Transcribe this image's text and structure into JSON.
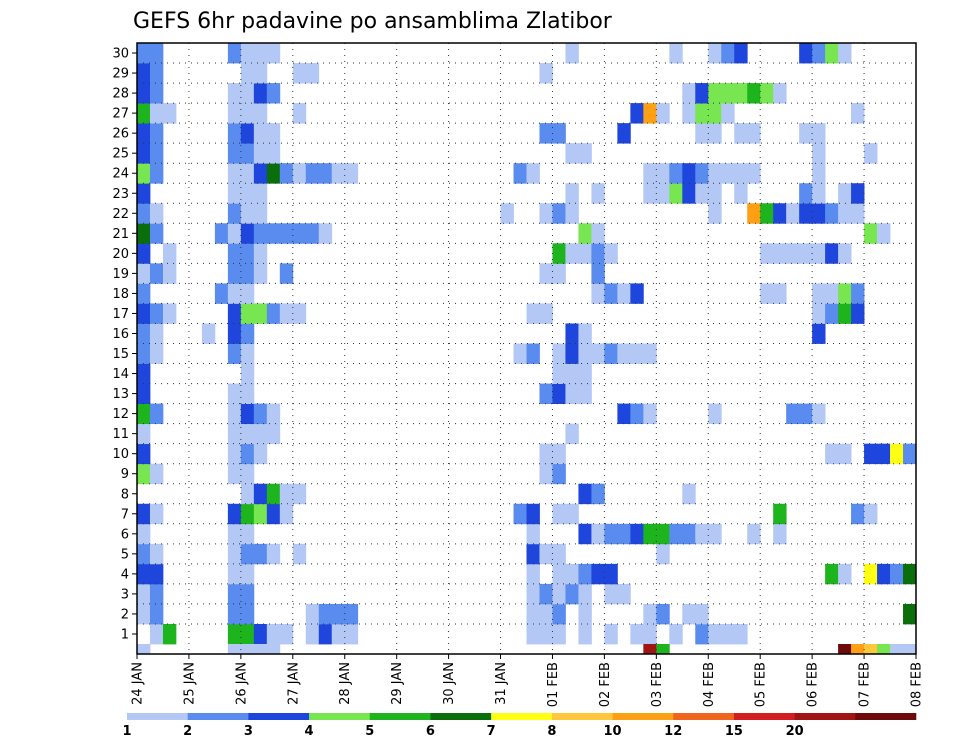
{
  "chart_data": {
    "type": "heatmap",
    "title": "GEFS 6hr padavine po ansamblima Zlatibor",
    "xlabel": "",
    "ylabel": "",
    "x_tick_labels": [
      "24 JAN",
      "25 JAN",
      "26 JAN",
      "27 JAN",
      "28 JAN",
      "29 JAN",
      "30 JAN",
      "31 JAN",
      "01 FEB",
      "02 FEB",
      "03 FEB",
      "04 FEB",
      "05 FEB",
      "06 FEB",
      "07 FEB",
      "08 FEB"
    ],
    "x_range_days": [
      0,
      15
    ],
    "y_tick_labels": [
      "1",
      "2",
      "3",
      "4",
      "5",
      "6",
      "7",
      "8",
      "9",
      "10",
      "11",
      "12",
      "13",
      "14",
      "15",
      "16",
      "17",
      "18",
      "19",
      "20",
      "21",
      "22",
      "23",
      "24",
      "25",
      "26",
      "27",
      "28",
      "29",
      "30"
    ],
    "y_range": [
      0,
      30
    ],
    "grid": true,
    "colorbar": {
      "labels": [
        "1",
        "2",
        "3",
        "4",
        "5",
        "6",
        "7",
        "8",
        "10",
        "12",
        "15",
        "20"
      ],
      "colors": [
        "#b4c8f5",
        "#5a8cf0",
        "#1e46dc",
        "#78e650",
        "#1eb41e",
        "#0a6e0a",
        "#ffff14",
        "#ffc83c",
        "#ffa014",
        "#f0641e",
        "#d21e1e",
        "#a01414",
        "#6e0a0a"
      ]
    },
    "cells_by_member": {
      "1": "0.25:0,0.5:4,1.75:4,2:4,2.25:2,2.5:0,2.75:0,3.25:0,3.5:2,3.75:0,4:0,7.5:0,7.75:0,8:0,8.5:0,9:0,9.5:0,9.75:0,10.25:0,10.75:1,11:0,11.25:0,11.5:0",
      "2": "0,0.25:1,1.75:1,2:1,3.25:0,3.5:1,3.75:1,4:1,7.5:0,7.75:0,8:1,8.5:0,9.75:0,10:1,10.5:0,10.75:0,14.75:5",
      "3": "0,0.25:1,1.75:1,2:1,7.5:0,7.75:1,8:0,8.25:1,8.5:0,9:0,9.25:0",
      "4": "0:2,0.25:2,1.75:0,2:0,7.5:0,8:0,8.25:0,8.5:1,8.75:2,9:2,13.25:4,13.5:0,14:6,14.25:2,14.5:1,14.75:5",
      "5": "0:1,0.25:0,1.75:0,2:1,2.25:1,2.5:0,3:0,7.5:2,7.75:0,8:0,10:0",
      "6": "0,1.75:0,2:0,7.5:0,8.5:2,8.75:0,9:1,9.25:1,9.5:2,9.75:4,10:4,10.25:1,10.5:1,10.75:0,11:0,11.75:0,12.25:0",
      "7": "0:2,0.25:0,1.75:2,2:4,2.25:3,2.5:2,2.75:0,7.25:1,7.5:2,8:0,8.25:0,12.25:4,13.75:1,14:0",
      "8": "2,2.25:2,2.5:4,2.75:0,3:0,8.5:2,8.75:1,10.5:0",
      "9": "0:3,0.25:0,1.75:0,2:0,7.75:0,8:1",
      "10": "0:2,1.75:0,2:1,2.25:0,7.75:0,8:0,13.25:0,13.5:0,14:2,14.25:2,14.5:6,14.75:1",
      "11": "0,1.75:0,2:0,2.25:0,2.5:0,8.25:0",
      "12": "0:4,0.25:1,1.75:0,2:2,2.25:1,2.5:0,9.25:2,9.5:1,9.75:0,11:0,12.5:1,12.75:1,13:0",
      "13": "0:2,1.75:0,2:0,7.75:1,8:2,8.25:0,8.5:0",
      "14": "0:2,2:0,8:0,8.25:0,8.5:0",
      "15": "0:1,0.25:0,1.75:1,2:0,7.25:0,7.5:1,8:0,8.25:2,8.5:0,8.75:0,9:1,9.25:0,9.5:0,9.75:0",
      "16": "0:1,0.25:0,1.25:0,1.75:2,2:1,8.25:2,8.5:0,13:2",
      "17": "0:2,0.25:1,0.5:0,1.75:2,2:3,2.25:3,2.5:1,2.75:0,3:0,7.5:0,7.75:0,13:0,13.25:1,13.5:4,13.75:2",
      "18": "0:1,1.5:1,1.75:0,2:0,8.75:0,9:1,9.25:0,9.5:2,12:0,12.25:0,13:0,13.25:0,13.5:3,13.75:1",
      "19": "0:0,0.25:1,0.5:0,1.75:1,2:1,2.25:0,2.75:1,7.75:0,8:0,8.75:1",
      "20": "0:2,0.5:0,1.75:1,2:1,2.25:0,8:4,8.25:0,8.5:0,8.75:1,9:0,12:0,12.25:0,12.5:0,12.75:0,13:0,13.25:2,13.5:0",
      "21": "0:5,0.25:1,1.5:1,1.75:0,2:2,2.25:1,2.5:1,2.75:1,3:1,3.25:1,3.5:0,8.5:3,8.75:0,14:3,14.25:0",
      "22": "0:1,0.25:0,1.75:1,2:0,2.25:0,7:0,7.75:0,8:1,8.25:0,11:0,11.75:8,12:4,12.25:2,12.5:0,12.75:2,13:2,13.25:1,13.5:0,13.75:0",
      "23": "0:2,1.75:0,2:0,2.25:0,8.25:0,8.75:0,9.75:0,10:0,10.25:3,10.5:2,10.75:0,11:0,11.5:0,12.75:1,13:0,13.5:0,13.75:2",
      "24": "0:3,0.25:1,1.75:0,2:0,2.25:2,2.5:5,2.75:1,3:0,3.25:1,3.5:1,3.75:0,4:0,7.25:1,7.5:0,9.75:0,10:0,10.25:1,10.5:2,10.75:1,11:0,11.25:0,11.5:0,11.75:0,13:0",
      "25": "0:2,0.25:1,1.75:1,2:1,2.25:0,2.5:0,8.25:0,8.5:0,13:0,14:0",
      "26": "0:2,0.25:1,1.75:1,2:2,2.25:0,2.5:0,7.75:1,8:1,9.25:2,10.75:0,11:0,11.5:0,11.75:0,12.75:0,13:0",
      "27": "0:4,0.25:0,0.5:0,1.75:0,2:0,2.25:0,3:0,9.5:2,9.75:8,10:0,10.5:0,10.75:3,11:3,11.25:0,13.75:0",
      "28": "0:2,0.25:1,1.75:0,2:0,2.25:2,2.5:1,10.5:0,10.75:2,11:3,11.25:3,11.5:3,11.75:4,12:3,12.25:0",
      "29": "0:2,0.25:1,2:0,2.25:0,3:0,3.25:0,7.75:0",
      "30": "0:1,0.25:1,1.75:1,2:0,2.25:0,2.5:0,8.25:0,10.25:0,11:0,11.25:1,11.5:2,12.75:2,13:1,13.25:3,13.5:0"
    },
    "bottom_strip": "0:0,1.75:0,2:0,2.25:0,2.5:0,9.75:11,10:4,13.5:12,13.75:8,14:7,14.25:3,14.5:0,14.75:0"
  }
}
